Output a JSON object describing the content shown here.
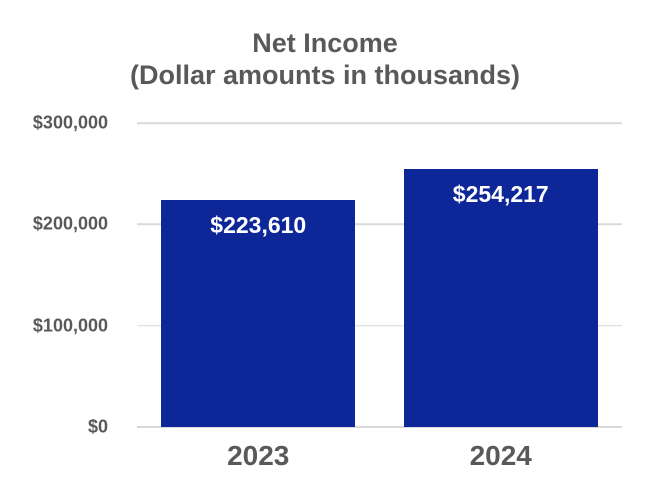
{
  "chart_data": {
    "type": "bar",
    "title": "Net Income",
    "subtitle": "(Dollar amounts in thousands)",
    "categories": [
      "2023",
      "2024"
    ],
    "values": [
      223610,
      254217
    ],
    "value_labels": [
      "$223,610",
      "$254,217"
    ],
    "xlabel": "",
    "ylabel": "",
    "ylim": [
      0,
      300000
    ],
    "y_ticks": [
      {
        "value": 300000,
        "label": "$300,000"
      },
      {
        "value": 200000,
        "label": "$200,000"
      },
      {
        "value": 100000,
        "label": "$100,000"
      },
      {
        "value": 0,
        "label": "$0"
      }
    ],
    "grid": true,
    "legend_position": "none",
    "colors": {
      "bar": "#0E2798",
      "gridline": "#D9D9D9",
      "axis_text": "#595959",
      "title_text": "#595959",
      "data_label_text": "#FFFFFF",
      "background": "#FFFFFF"
    }
  }
}
